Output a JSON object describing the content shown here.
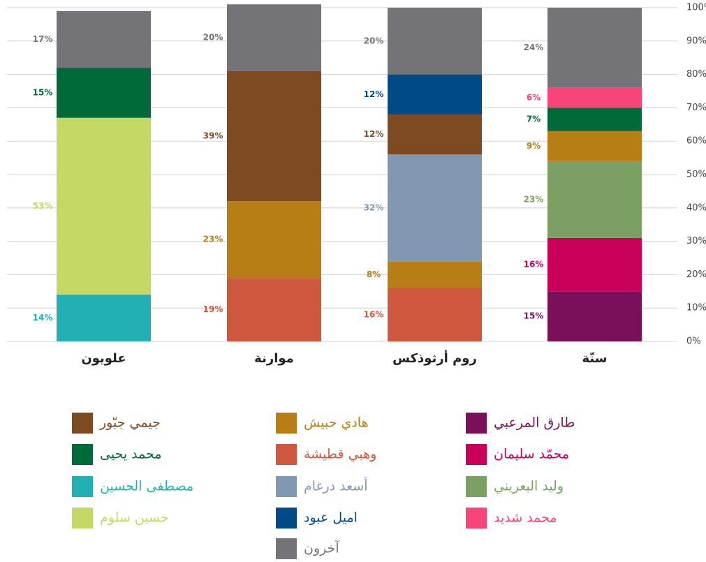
{
  "chart_data": {
    "type": "stacked_bar",
    "categories": [
      "علويون",
      "موارنة",
      "روم أرثوذكس",
      "سنّة"
    ],
    "ylim": [
      0,
      100
    ],
    "yticks": [
      {
        "value": 0,
        "label": "0%"
      },
      {
        "value": 10,
        "label": "10%"
      },
      {
        "value": 20,
        "label": "20%"
      },
      {
        "value": 30,
        "label": "30%"
      },
      {
        "value": 40,
        "label": "40%"
      },
      {
        "value": 50,
        "label": "50%"
      },
      {
        "value": 60,
        "label": "60%"
      },
      {
        "value": 70,
        "label": "70%"
      },
      {
        "value": 80,
        "label": "80%"
      },
      {
        "value": 90,
        "label": "90%"
      },
      {
        "value": 100,
        "label": "100%"
      }
    ],
    "grid": true,
    "series": [
      {
        "name": "طارق المرعبي",
        "color": "#7a0f5a",
        "values": [
          null,
          null,
          null,
          15
        ],
        "value_labels": [
          null,
          null,
          null,
          "15%"
        ]
      },
      {
        "name": "محمّد سليمان",
        "color": "#c8005a",
        "values": [
          null,
          null,
          null,
          16
        ],
        "value_labels": [
          null,
          null,
          null,
          "16%"
        ]
      },
      {
        "name": "وليد البعريني",
        "color": "#7ba064",
        "values": [
          null,
          null,
          null,
          23
        ],
        "value_labels": [
          null,
          null,
          null,
          "23%"
        ]
      },
      {
        "name": "مصطفى الحسين",
        "color": "#22b0b4",
        "values": [
          14,
          null,
          null,
          null
        ],
        "value_labels": [
          "14%",
          null,
          null,
          null
        ]
      },
      {
        "name": "حسين سلوم",
        "color": "#c5d865",
        "values": [
          53,
          null,
          null,
          null
        ],
        "value_labels": [
          "53%",
          null,
          null,
          null
        ]
      },
      {
        "name": "وهبي قطيشة",
        "color": "#cf573d",
        "values": [
          null,
          19,
          16,
          null
        ],
        "value_labels": [
          null,
          "19%",
          "16%",
          null
        ]
      },
      {
        "name": "هادي حبيش",
        "color": "#b77e16",
        "values": [
          null,
          23,
          8,
          9
        ],
        "value_labels": [
          null,
          "23%",
          "8%",
          "9%"
        ]
      },
      {
        "name": "أسعد درغام",
        "color": "#8198b3",
        "values": [
          null,
          null,
          32,
          null
        ],
        "value_labels": [
          null,
          null,
          "32%",
          null
        ]
      },
      {
        "name": "جيمي جبّور",
        "color": "#7d4a22",
        "values": [
          null,
          39,
          12,
          null
        ],
        "value_labels": [
          null,
          "39%",
          "12%",
          null
        ]
      },
      {
        "name": "اميل عبود",
        "color": "#004b87",
        "values": [
          null,
          null,
          12,
          null
        ],
        "value_labels": [
          null,
          null,
          "12%",
          null
        ]
      },
      {
        "name": "محمد يحيى",
        "color": "#006a38",
        "values": [
          15,
          null,
          null,
          7
        ],
        "value_labels": [
          "15%",
          null,
          null,
          "7%"
        ]
      },
      {
        "name": "محمد شديد",
        "color": "#f7457a",
        "values": [
          null,
          null,
          null,
          6
        ],
        "value_labels": [
          null,
          null,
          null,
          "6%"
        ]
      },
      {
        "name": "آخرون",
        "color": "#747478",
        "values": [
          17,
          20,
          20,
          24
        ],
        "value_labels": [
          "17%",
          "20%",
          "20%",
          "24%"
        ]
      }
    ]
  }
}
